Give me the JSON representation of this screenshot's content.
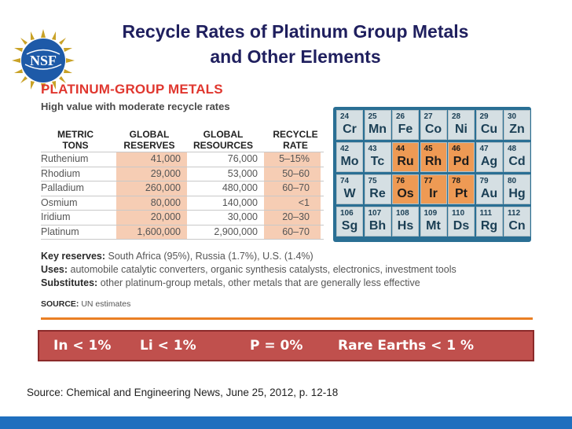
{
  "title": {
    "line1": "Recycle Rates of Platinum Group Metals",
    "line2": "and Other Elements"
  },
  "logo": {
    "icon": "nsf-logo",
    "text": "NSF"
  },
  "pgm_section": {
    "heading": "PLATINUM-GROUP METALS",
    "subheading": "High value with moderate recycle rates"
  },
  "table": {
    "headers": [
      [
        "METRIC",
        "TONS"
      ],
      [
        "GLOBAL",
        "RESERVES"
      ],
      [
        "GLOBAL",
        "RESOURCES"
      ],
      [
        "RECYCLE",
        "RATE"
      ]
    ],
    "rows": [
      [
        "Ruthenium",
        "41,000",
        "76,000",
        "5–15%"
      ],
      [
        "Rhodium",
        "29,000",
        "53,000",
        "50–60"
      ],
      [
        "Palladium",
        "260,000",
        "480,000",
        "60–70"
      ],
      [
        "Osmium",
        "80,000",
        "140,000",
        "<1"
      ],
      [
        "Iridium",
        "20,000",
        "30,000",
        "20–30"
      ],
      [
        "Platinum",
        "1,600,000",
        "2,900,000",
        "60–70"
      ]
    ]
  },
  "periodic_table": {
    "colors": {
      "background": "#2a6f94",
      "light": "#d5dfe3",
      "highlight": "#ee9a54"
    },
    "rows": [
      [
        {
          "num": "24",
          "sym": "Cr",
          "pgm": false
        },
        {
          "num": "25",
          "sym": "Mn",
          "pgm": false
        },
        {
          "num": "26",
          "sym": "Fe",
          "pgm": false
        },
        {
          "num": "27",
          "sym": "Co",
          "pgm": false
        },
        {
          "num": "28",
          "sym": "Ni",
          "pgm": false
        },
        {
          "num": "29",
          "sym": "Cu",
          "pgm": false
        },
        {
          "num": "30",
          "sym": "Zn",
          "pgm": false
        }
      ],
      [
        {
          "num": "42",
          "sym": "Mo",
          "pgm": false
        },
        {
          "num": "43",
          "sym": "Tc",
          "pgm": false
        },
        {
          "num": "44",
          "sym": "Ru",
          "pgm": true
        },
        {
          "num": "45",
          "sym": "Rh",
          "pgm": true
        },
        {
          "num": "46",
          "sym": "Pd",
          "pgm": true
        },
        {
          "num": "47",
          "sym": "Ag",
          "pgm": false
        },
        {
          "num": "48",
          "sym": "Cd",
          "pgm": false
        }
      ],
      [
        {
          "num": "74",
          "sym": "W",
          "pgm": false
        },
        {
          "num": "75",
          "sym": "Re",
          "pgm": false
        },
        {
          "num": "76",
          "sym": "Os",
          "pgm": true
        },
        {
          "num": "77",
          "sym": "Ir",
          "pgm": true
        },
        {
          "num": "78",
          "sym": "Pt",
          "pgm": true
        },
        {
          "num": "79",
          "sym": "Au",
          "pgm": false
        },
        {
          "num": "80",
          "sym": "Hg",
          "pgm": false
        }
      ],
      [
        {
          "num": "106",
          "sym": "Sg",
          "pgm": false
        },
        {
          "num": "107",
          "sym": "Bh",
          "pgm": false
        },
        {
          "num": "108",
          "sym": "Hs",
          "pgm": false
        },
        {
          "num": "109",
          "sym": "Mt",
          "pgm": false
        },
        {
          "num": "110",
          "sym": "Ds",
          "pgm": false
        },
        {
          "num": "111",
          "sym": "Rg",
          "pgm": false
        },
        {
          "num": "112",
          "sym": "Cn",
          "pgm": false
        }
      ]
    ]
  },
  "notes": {
    "key_reserves_label": "Key reserves:",
    "key_reserves_text": "South Africa (95%), Russia (1.7%), U.S. (1.4%)",
    "uses_label": "Uses:",
    "uses_text": "automobile catalytic converters, organic synthesis catalysts, electronics, investment tools",
    "substitutes_label": "Substitutes:",
    "substitutes_text": "other platinum-group metals, other metals that are generally less effective",
    "source_label": "SOURCE:",
    "source_text": "UN estimates"
  },
  "banner": {
    "items": [
      "In < 1%",
      "Li < 1%",
      "P = 0%",
      "Rare Earths < 1 %"
    ]
  },
  "footnote": "Source: Chemical and Engineering News, June 25, 2012, p. 12-18"
}
